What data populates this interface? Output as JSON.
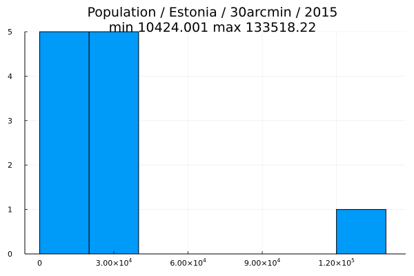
{
  "chart_data": {
    "type": "bar",
    "title": "Population / Estonia / 30arcmin / 2015",
    "subtitle": "min 10424.001  max 133518.22",
    "xlabel": "",
    "ylabel": "",
    "bins": [
      {
        "start": 0,
        "end": 20000,
        "count": 5
      },
      {
        "start": 20000,
        "end": 40000,
        "count": 5
      },
      {
        "start": 40000,
        "end": 60000,
        "count": 0
      },
      {
        "start": 60000,
        "end": 80000,
        "count": 0
      },
      {
        "start": 80000,
        "end": 100000,
        "count": 0
      },
      {
        "start": 100000,
        "end": 120000,
        "count": 0
      },
      {
        "start": 120000,
        "end": 140000,
        "count": 1
      }
    ],
    "xlim": [
      -6000,
      148000
    ],
    "ylim": [
      0,
      5
    ],
    "x_ticks": [
      {
        "value": 0,
        "label": "0",
        "exp": ""
      },
      {
        "value": 30000,
        "label": "3.00×10",
        "exp": "4"
      },
      {
        "value": 60000,
        "label": "6.00×10",
        "exp": "4"
      },
      {
        "value": 90000,
        "label": "9.00×10",
        "exp": "4"
      },
      {
        "value": 120000,
        "label": "1.20×10",
        "exp": "5"
      }
    ],
    "y_ticks": [
      {
        "value": 0,
        "label": "0"
      },
      {
        "value": 1,
        "label": "1"
      },
      {
        "value": 2,
        "label": "2"
      },
      {
        "value": 3,
        "label": "3"
      },
      {
        "value": 4,
        "label": "4"
      },
      {
        "value": 5,
        "label": "5"
      }
    ],
    "grid": true,
    "legend": "none",
    "bar_color": "#009af9",
    "bar_edge_color": "#000000"
  }
}
